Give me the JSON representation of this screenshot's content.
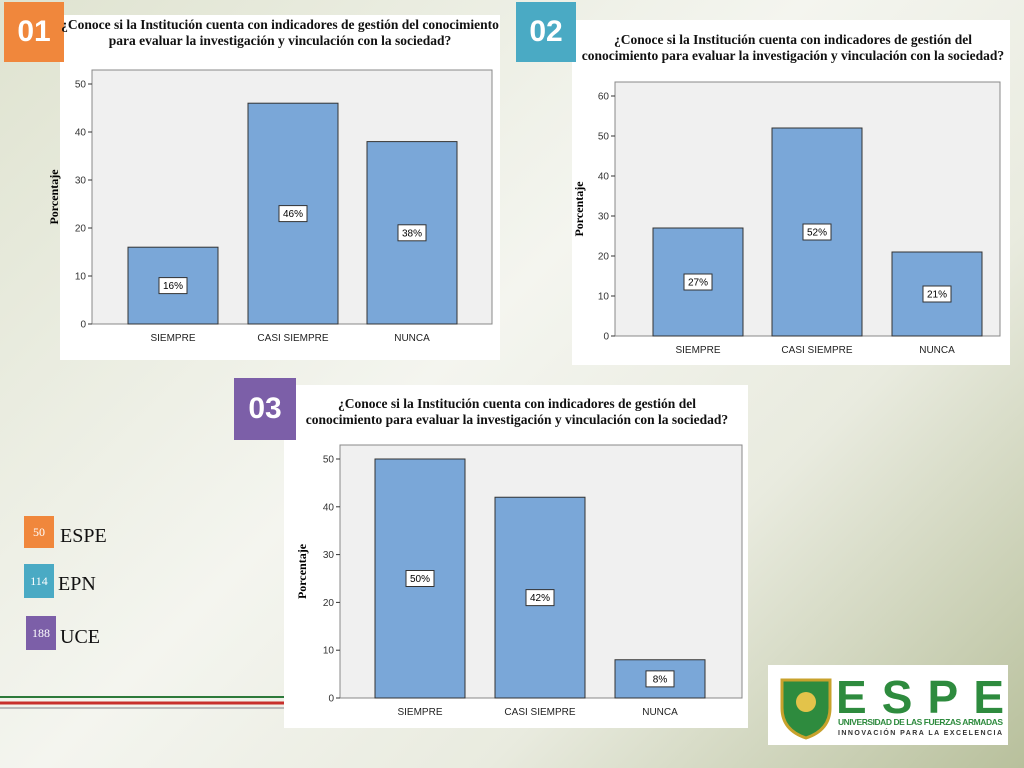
{
  "chart_data": [
    {
      "type": "bar",
      "badge": "01",
      "badge_color": "#f0873c",
      "title": "¿Conoce si la Institución cuenta con indicadores de gestión del conocimiento para evaluar la investigación y vinculación con la sociedad?",
      "y_label": "Porcentaje",
      "categories": [
        "SIEMPRE",
        "CASI SIEMPRE",
        "NUNCA"
      ],
      "values": [
        16,
        46,
        38
      ],
      "value_labels": [
        "16%",
        "46%",
        "38%"
      ],
      "color": "#7aa7d8",
      "ylim": [
        0,
        50
      ],
      "yticks": [
        0,
        10,
        20,
        30,
        40,
        50
      ]
    },
    {
      "type": "bar",
      "badge": "02",
      "badge_color": "#4aaac4",
      "title": "¿Conoce si la Institución cuenta con indicadores de gestión del conocimiento para evaluar la investigación y vinculación con la sociedad?",
      "y_label": "Porcentaje",
      "categories": [
        "SIEMPRE",
        "CASI SIEMPRE",
        "NUNCA"
      ],
      "values": [
        27,
        52,
        21
      ],
      "value_labels": [
        "27%",
        "52%",
        "21%"
      ],
      "color": "#7aa7d8",
      "ylim": [
        0,
        60
      ],
      "yticks": [
        0,
        10,
        20,
        30,
        40,
        50,
        60
      ]
    },
    {
      "type": "bar",
      "badge": "03",
      "badge_color": "#7c5fa8",
      "title": "¿Conoce si la Institución cuenta con indicadores de gestión del conocimiento para evaluar la investigación y vinculación con la sociedad?",
      "y_label": "Porcentaje",
      "categories": [
        "SIEMPRE",
        "CASI SIEMPRE",
        "NUNCA"
      ],
      "values": [
        50,
        42,
        8
      ],
      "value_labels": [
        "50%",
        "42%",
        "8%"
      ],
      "color": "#7aa7d8",
      "ylim": [
        0,
        50
      ],
      "yticks": [
        0,
        10,
        20,
        30,
        40,
        50
      ]
    }
  ],
  "sample_legend": [
    {
      "count": 50,
      "label": "ESPE",
      "color": "#f0873c"
    },
    {
      "count": 114,
      "label": "EPN",
      "color": "#4aaac4"
    },
    {
      "count": 188,
      "label": "UCE",
      "color": "#7c5fa8"
    }
  ],
  "logo": {
    "name": "ESPE",
    "subtitle": "UNIVERSIDAD DE LAS FUERZAS ARMADAS",
    "motto": "INNOVACIÓN PARA LA EXCELENCIA"
  }
}
